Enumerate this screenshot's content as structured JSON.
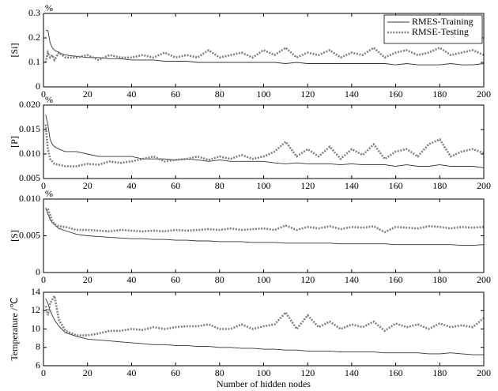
{
  "chart_data": [
    {
      "type": "line",
      "ylabel": "[Si]",
      "unit": "%",
      "legend": "upper right",
      "x": [
        1,
        2,
        3,
        4,
        5,
        7,
        10,
        15,
        20,
        25,
        30,
        35,
        40,
        45,
        50,
        55,
        60,
        65,
        70,
        75,
        80,
        85,
        90,
        95,
        100,
        105,
        110,
        115,
        120,
        125,
        130,
        135,
        140,
        145,
        150,
        155,
        160,
        165,
        170,
        175,
        180,
        185,
        190,
        195,
        200
      ],
      "series": [
        {
          "name": "RMES-Training",
          "color": "#333333",
          "style": "solid",
          "values": [
            0.23,
            0.23,
            0.18,
            0.16,
            0.15,
            0.14,
            0.13,
            0.125,
            0.12,
            0.12,
            0.115,
            0.115,
            0.11,
            0.11,
            0.11,
            0.105,
            0.105,
            0.105,
            0.1,
            0.1,
            0.1,
            0.1,
            0.1,
            0.1,
            0.1,
            0.1,
            0.095,
            0.1,
            0.095,
            0.095,
            0.095,
            0.095,
            0.095,
            0.095,
            0.095,
            0.095,
            0.09,
            0.095,
            0.09,
            0.09,
            0.09,
            0.095,
            0.09,
            0.09,
            0.095
          ]
        },
        {
          "name": "RMSE-Testing",
          "color": "#808080",
          "style": "dotted",
          "values": [
            0.1,
            0.14,
            0.12,
            0.13,
            0.11,
            0.14,
            0.12,
            0.12,
            0.13,
            0.11,
            0.13,
            0.12,
            0.12,
            0.13,
            0.12,
            0.14,
            0.12,
            0.13,
            0.12,
            0.15,
            0.12,
            0.13,
            0.14,
            0.12,
            0.15,
            0.13,
            0.16,
            0.12,
            0.14,
            0.13,
            0.15,
            0.12,
            0.14,
            0.13,
            0.16,
            0.12,
            0.14,
            0.15,
            0.13,
            0.14,
            0.16,
            0.13,
            0.14,
            0.15,
            0.13
          ]
        }
      ],
      "xlim": [
        0,
        200
      ],
      "xticks": [
        0,
        20,
        40,
        60,
        80,
        100,
        120,
        140,
        160,
        180,
        200
      ],
      "ylim": [
        0,
        0.3
      ],
      "yticks": [
        0,
        0.1,
        0.2,
        0.3
      ]
    },
    {
      "type": "line",
      "ylabel": "[P]",
      "unit": "%",
      "x": [
        1,
        2,
        3,
        4,
        5,
        7,
        10,
        15,
        20,
        25,
        30,
        35,
        40,
        45,
        50,
        55,
        60,
        65,
        70,
        75,
        80,
        85,
        90,
        95,
        100,
        105,
        110,
        115,
        120,
        125,
        130,
        135,
        140,
        145,
        150,
        155,
        160,
        165,
        170,
        175,
        180,
        185,
        190,
        195,
        200
      ],
      "series": [
        {
          "color": "#333333",
          "style": "solid",
          "values": [
            0.018,
            0.016,
            0.013,
            0.012,
            0.0115,
            0.011,
            0.0105,
            0.0105,
            0.01,
            0.0095,
            0.0095,
            0.0095,
            0.0095,
            0.009,
            0.009,
            0.009,
            0.0088,
            0.009,
            0.0088,
            0.0085,
            0.0088,
            0.0085,
            0.0085,
            0.0085,
            0.0085,
            0.0082,
            0.008,
            0.0082,
            0.008,
            0.008,
            0.008,
            0.0078,
            0.008,
            0.0078,
            0.0078,
            0.0078,
            0.0075,
            0.0078,
            0.0075,
            0.0075,
            0.0078,
            0.0075,
            0.0075,
            0.0075,
            0.0072
          ]
        },
        {
          "color": "#808080",
          "style": "dotted",
          "values": [
            0.016,
            0.011,
            0.009,
            0.0085,
            0.008,
            0.0078,
            0.0075,
            0.0075,
            0.008,
            0.0078,
            0.0085,
            0.0082,
            0.0085,
            0.009,
            0.0095,
            0.0085,
            0.0088,
            0.009,
            0.0095,
            0.0088,
            0.0095,
            0.009,
            0.0098,
            0.009,
            0.0095,
            0.0105,
            0.0125,
            0.0095,
            0.011,
            0.0095,
            0.0115,
            0.009,
            0.011,
            0.0098,
            0.012,
            0.009,
            0.0105,
            0.011,
            0.0095,
            0.012,
            0.013,
            0.0095,
            0.0105,
            0.011,
            0.0102
          ]
        }
      ],
      "xlim": [
        0,
        200
      ],
      "xticks": [
        0,
        20,
        40,
        60,
        80,
        100,
        120,
        140,
        160,
        180,
        200
      ],
      "ylim": [
        0.005,
        0.02
      ],
      "yticks": [
        0.005,
        {
          "value": 0.01,
          "label": "0.010"
        },
        0.015,
        {
          "value": 0.02,
          "label": "0.020"
        }
      ]
    },
    {
      "type": "line",
      "ylabel": "[S]",
      "unit": "%",
      "x": [
        1,
        2,
        3,
        4,
        5,
        7,
        10,
        15,
        20,
        25,
        30,
        35,
        40,
        45,
        50,
        55,
        60,
        65,
        70,
        75,
        80,
        85,
        90,
        95,
        100,
        105,
        110,
        115,
        120,
        125,
        130,
        135,
        140,
        145,
        150,
        155,
        160,
        165,
        170,
        175,
        180,
        185,
        190,
        195,
        200
      ],
      "series": [
        {
          "color": "#333333",
          "style": "solid",
          "values": [
            0.0088,
            0.008,
            0.0072,
            0.0068,
            0.0065,
            0.006,
            0.0057,
            0.0052,
            0.005,
            0.0049,
            0.0048,
            0.0047,
            0.0046,
            0.0046,
            0.0045,
            0.0045,
            0.0044,
            0.0044,
            0.0043,
            0.0043,
            0.0042,
            0.0042,
            0.0042,
            0.0041,
            0.0041,
            0.0041,
            0.004,
            0.004,
            0.004,
            0.004,
            0.004,
            0.0039,
            0.0039,
            0.0039,
            0.0039,
            0.0039,
            0.0038,
            0.0038,
            0.0038,
            0.0038,
            0.0038,
            0.0038,
            0.0037,
            0.0037,
            0.0038
          ]
        },
        {
          "color": "#808080",
          "style": "dotted",
          "values": [
            0.0085,
            0.0087,
            0.0078,
            0.007,
            0.0066,
            0.0063,
            0.0062,
            0.0058,
            0.0058,
            0.0057,
            0.0056,
            0.0058,
            0.0057,
            0.0056,
            0.0057,
            0.0056,
            0.0058,
            0.0057,
            0.0058,
            0.0059,
            0.0058,
            0.006,
            0.0058,
            0.0059,
            0.006,
            0.0058,
            0.0064,
            0.0058,
            0.0062,
            0.006,
            0.0063,
            0.0059,
            0.0062,
            0.0061,
            0.0063,
            0.0055,
            0.0062,
            0.0061,
            0.006,
            0.0063,
            0.0062,
            0.006,
            0.0062,
            0.0061,
            0.0062
          ]
        }
      ],
      "xlim": [
        0,
        200
      ],
      "xticks": [
        0,
        20,
        40,
        60,
        80,
        100,
        120,
        140,
        160,
        180,
        200
      ],
      "ylim": [
        0,
        0.01
      ],
      "yticks": [
        0,
        0.005,
        {
          "value": 0.01,
          "label": "0.010"
        }
      ]
    },
    {
      "type": "line",
      "ylabel": "Temperature /℃",
      "xlabel": "Number of hidden nodes",
      "x": [
        1,
        2,
        3,
        4,
        5,
        7,
        10,
        15,
        20,
        25,
        30,
        35,
        40,
        45,
        50,
        55,
        60,
        65,
        70,
        75,
        80,
        85,
        90,
        95,
        100,
        105,
        110,
        115,
        120,
        125,
        130,
        135,
        140,
        145,
        150,
        155,
        160,
        165,
        170,
        175,
        180,
        185,
        190,
        195,
        200
      ],
      "series": [
        {
          "color": "#333333",
          "style": "solid",
          "values": [
            13.3,
            12.8,
            12,
            11.5,
            11,
            10.3,
            9.6,
            9.2,
            8.9,
            8.8,
            8.7,
            8.6,
            8.5,
            8.4,
            8.3,
            8.3,
            8.2,
            8.2,
            8.1,
            8.1,
            8,
            8,
            7.9,
            7.9,
            7.8,
            7.8,
            7.7,
            7.7,
            7.6,
            7.6,
            7.6,
            7.5,
            7.5,
            7.5,
            7.5,
            7.4,
            7.4,
            7.4,
            7.4,
            7.3,
            7.3,
            7.4,
            7.3,
            7.2,
            7.2
          ]
        },
        {
          "color": "#808080",
          "style": "dotted",
          "values": [
            12.5,
            11.5,
            12.8,
            13.2,
            13.6,
            11,
            9.8,
            9.3,
            9.3,
            9.5,
            9.8,
            9.8,
            10,
            9.9,
            10.2,
            10,
            10.2,
            10.3,
            10.3,
            10.5,
            10,
            10,
            10.5,
            10,
            10.3,
            10.5,
            11.8,
            10,
            11.5,
            10.2,
            10.8,
            10,
            10.5,
            10.2,
            10.8,
            9.8,
            10.6,
            10.2,
            10.5,
            10,
            10.6,
            10.2,
            10.4,
            10.2,
            11.2
          ]
        }
      ],
      "xlim": [
        0,
        200
      ],
      "xticks": [
        0,
        20,
        40,
        60,
        80,
        100,
        120,
        140,
        160,
        180,
        200
      ],
      "ylim": [
        6,
        14
      ],
      "yticks": [
        6,
        8,
        10,
        12,
        14
      ]
    }
  ]
}
